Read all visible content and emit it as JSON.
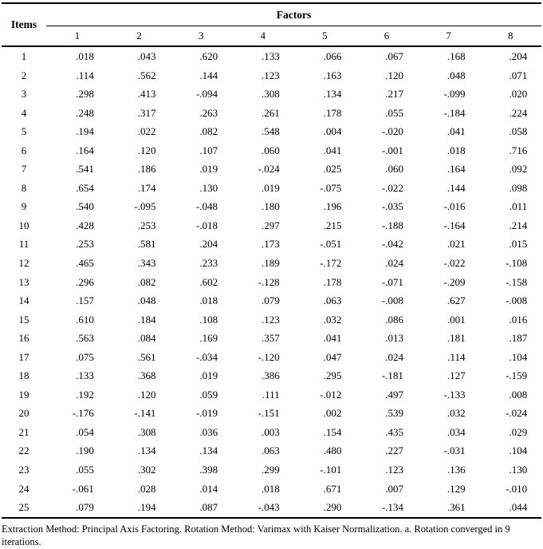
{
  "table": {
    "items_header": "Items",
    "factors_header": "Factors",
    "factor_columns": [
      "1",
      "2",
      "3",
      "4",
      "5",
      "6",
      "7",
      "8"
    ],
    "rows": [
      {
        "item": "1",
        "values": [
          ".018",
          ".043",
          ".620",
          ".133",
          ".066",
          ".067",
          ".168",
          ".204"
        ]
      },
      {
        "item": "2",
        "values": [
          ".114",
          ".562",
          ".144",
          ".123",
          ".163",
          ".120",
          ".048",
          ".071"
        ]
      },
      {
        "item": "3",
        "values": [
          ".298",
          ".413",
          "-.094",
          ".308",
          ".134",
          ".217",
          "-.099",
          ".020"
        ]
      },
      {
        "item": "4",
        "values": [
          ".248",
          ".317",
          ".263",
          ".261",
          ".178",
          ".055",
          "-.184",
          ".224"
        ]
      },
      {
        "item": "5",
        "values": [
          ".194",
          ".022",
          ".082",
          ".548",
          ".004",
          "-.020",
          ".041",
          ".058"
        ]
      },
      {
        "item": "6",
        "values": [
          ".164",
          ".120",
          ".107",
          ".060",
          ".041",
          "-.001",
          ".018",
          ".716"
        ]
      },
      {
        "item": "7",
        "values": [
          ".541",
          ".186",
          ".019",
          "-.024",
          ".025",
          ".060",
          ".164",
          ".092"
        ]
      },
      {
        "item": "8",
        "values": [
          ".654",
          ".174",
          ".130",
          ".019",
          "-.075",
          "-.022",
          ".144",
          ".098"
        ]
      },
      {
        "item": "9",
        "values": [
          ".540",
          "-.095",
          "-.048",
          ".180",
          ".196",
          "-.035",
          "-.016",
          ".011"
        ]
      },
      {
        "item": "10",
        "values": [
          ".428",
          ".253",
          "-.018",
          ".297",
          ".215",
          "-.188",
          "-.164",
          ".214"
        ]
      },
      {
        "item": "11",
        "values": [
          ".253",
          ".581",
          ".204",
          ".173",
          "-.051",
          "-.042",
          ".021",
          ".015"
        ]
      },
      {
        "item": "12",
        "values": [
          ".465",
          ".343",
          ".233",
          ".189",
          "-.172",
          ".024",
          "-.022",
          "-.108"
        ]
      },
      {
        "item": "13",
        "values": [
          ".296",
          ".082",
          ".602",
          "-.128",
          ".178",
          "-.071",
          "-.209",
          "-.158"
        ]
      },
      {
        "item": "14",
        "values": [
          ".157",
          ".048",
          ".018",
          ".079",
          ".063",
          "-.008",
          ".627",
          "-.008"
        ]
      },
      {
        "item": "15",
        "values": [
          ".610",
          ".184",
          ".108",
          ".123",
          ".032",
          ".086",
          ".001",
          ".016"
        ]
      },
      {
        "item": "16",
        "values": [
          ".563",
          ".084",
          ".169",
          ".357",
          ".041",
          ".013",
          ".181",
          ".187"
        ]
      },
      {
        "item": "17",
        "values": [
          ".075",
          ".561",
          "-.034",
          "-.120",
          ".047",
          ".024",
          ".114",
          ".104"
        ]
      },
      {
        "item": "18",
        "values": [
          ".133",
          ".368",
          ".019",
          ".386",
          ".295",
          "-.181",
          ".127",
          "-.159"
        ]
      },
      {
        "item": "19",
        "values": [
          ".192",
          ".120",
          ".059",
          ".111",
          "-.012",
          ".497",
          "-.133",
          ".008"
        ]
      },
      {
        "item": "20",
        "values": [
          "-.176",
          "-.141",
          "-.019",
          "-.151",
          ".002",
          ".539",
          ".032",
          "-.024"
        ]
      },
      {
        "item": "21",
        "values": [
          ".054",
          ".308",
          ".036",
          ".003",
          ".154",
          ".435",
          ".034",
          ".029"
        ]
      },
      {
        "item": "22",
        "values": [
          ".190",
          ".134",
          ".134",
          ".063",
          ".480",
          ".227",
          "-.031",
          ".104"
        ]
      },
      {
        "item": "23",
        "values": [
          ".055",
          ".302",
          ".398",
          ".299",
          "-.101",
          ".123",
          ".136",
          ".130"
        ]
      },
      {
        "item": "24",
        "values": [
          "-.061",
          ".028",
          ".014",
          ".018",
          ".671",
          ".007",
          ".129",
          "-.010"
        ]
      },
      {
        "item": "25",
        "values": [
          ".079",
          ".194",
          ".087",
          "-.043",
          ".290",
          "-.134",
          ".361",
          ".044"
        ]
      }
    ]
  },
  "footnote": "Extraction Method: Principal Axis Factoring. Rotation Method: Varimax with Kaiser Normalization. a. Rotation converged in 9 iterations.",
  "colors": {
    "text": "#000000",
    "background": "#ffffff",
    "rule": "#000000"
  }
}
